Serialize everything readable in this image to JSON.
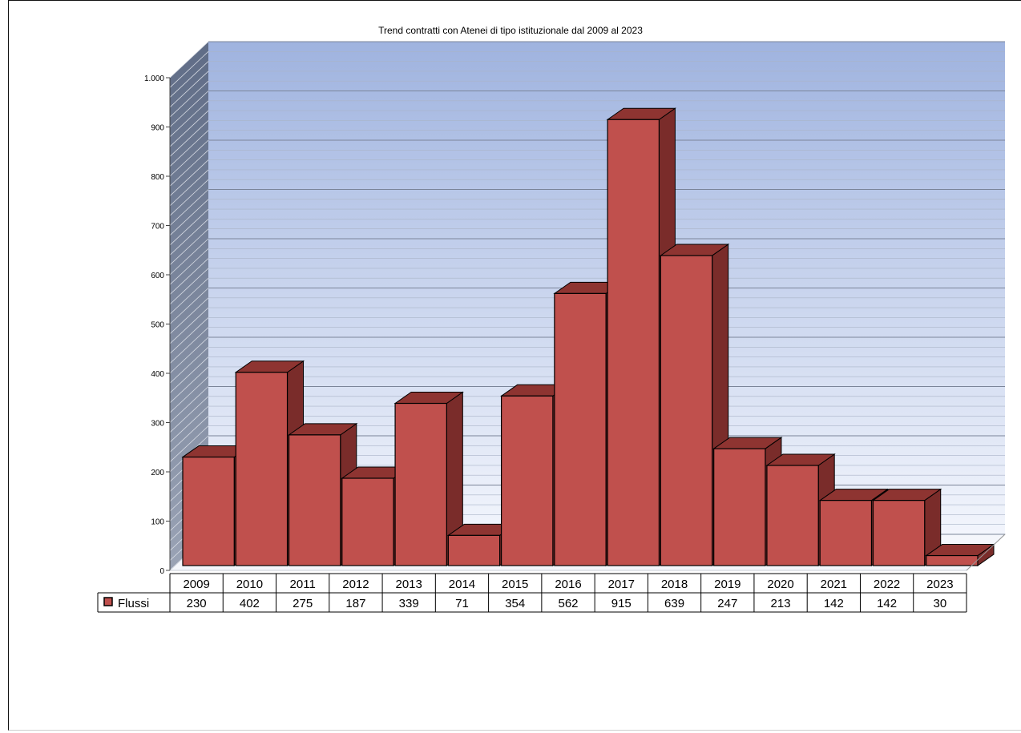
{
  "chart_data": {
    "type": "bar",
    "title": "Trend contratti con Atenei di tipo istituzionale dal 2009 al 2023",
    "categories": [
      "2009",
      "2010",
      "2011",
      "2012",
      "2013",
      "2014",
      "2015",
      "2016",
      "2017",
      "2018",
      "2019",
      "2020",
      "2021",
      "2022",
      "2023"
    ],
    "series": [
      {
        "name": "Flussi",
        "values": [
          230,
          402,
          275,
          187,
          339,
          71,
          354,
          562,
          915,
          639,
          247,
          213,
          142,
          142,
          30
        ]
      }
    ],
    "ylim": [
      0,
      1000
    ],
    "yticks": [
      0,
      100,
      200,
      300,
      400,
      500,
      600,
      700,
      800,
      900,
      1000
    ],
    "ytick_labels": [
      "0",
      "100",
      "200",
      "300",
      "400",
      "500",
      "600",
      "700",
      "800",
      "900",
      "1.000"
    ],
    "data_table": true,
    "grid": true,
    "legend": "data-table-left",
    "colors": {
      "bar_front": "#c0504d",
      "bar_top": "#8e3431",
      "bar_side": "#7a2c2a",
      "wall_top": "#a3b6e0",
      "wall_bottom": "#eef2fb",
      "side_wall": "#6f7b93"
    }
  }
}
